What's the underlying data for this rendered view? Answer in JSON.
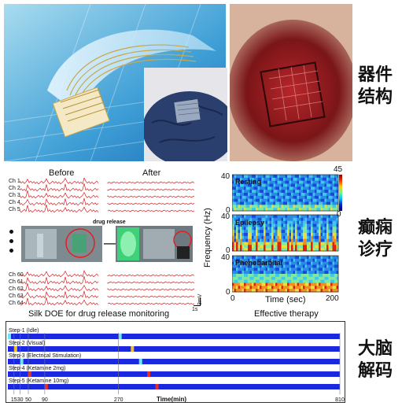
{
  "side_labels": {
    "device_structure": "器件结构",
    "epilepsy_treatment": "癫痫诊疗",
    "brain_decoding": "大脑解码"
  },
  "eeg_panel": {
    "before": "Before",
    "after": "After",
    "drug_release": "drug release",
    "caption": "Silk DOE for drug release monitoring",
    "scale_v": "3mV",
    "scale_t": "1s",
    "channels_top": [
      "Ch 1",
      "Ch 2",
      "Ch 3",
      "Ch 4",
      "Ch 5"
    ],
    "channels_bottom": [
      "Ch 60",
      "Ch 61",
      "Ch 62",
      "Ch 63",
      "Ch 64"
    ]
  },
  "spectrogram": {
    "ylabel": "Frequency (Hz)",
    "xlabel": "Time (sec)",
    "caption": "Effective therapy",
    "y_top": "40",
    "y_bottom": "0",
    "x_start": "0",
    "x_end": "200",
    "cbar_max": "45",
    "cbar_min": "0",
    "panels": [
      "Resting",
      "Epilepsy",
      "Phenobarbital"
    ]
  },
  "chart_data": {
    "type": "heatmap",
    "xlabel": "Time(min)",
    "x_ticks": [
      15,
      30,
      50,
      90,
      270,
      810
    ],
    "xlim": [
      0,
      810
    ],
    "rows": [
      {
        "label": "Step-1 (Idle)",
        "events": [
          0,
          270
        ]
      },
      {
        "label": "Step-2 (Visual)",
        "events": [
          15,
          300
        ]
      },
      {
        "label": "Step-3 (Electrical Stimulation)",
        "events": [
          30,
          320
        ]
      },
      {
        "label": "Step-4 (Ketamine 2mg)",
        "events": [
          50,
          340
        ]
      },
      {
        "label": "Step-5 (Ketamine 10mg)",
        "events": [
          90,
          360
        ]
      }
    ],
    "colors": {
      "band": "#1a28e0",
      "event_a": "#6fe3f0",
      "event_b": "#f0c030",
      "event_c": "#e03030"
    }
  }
}
